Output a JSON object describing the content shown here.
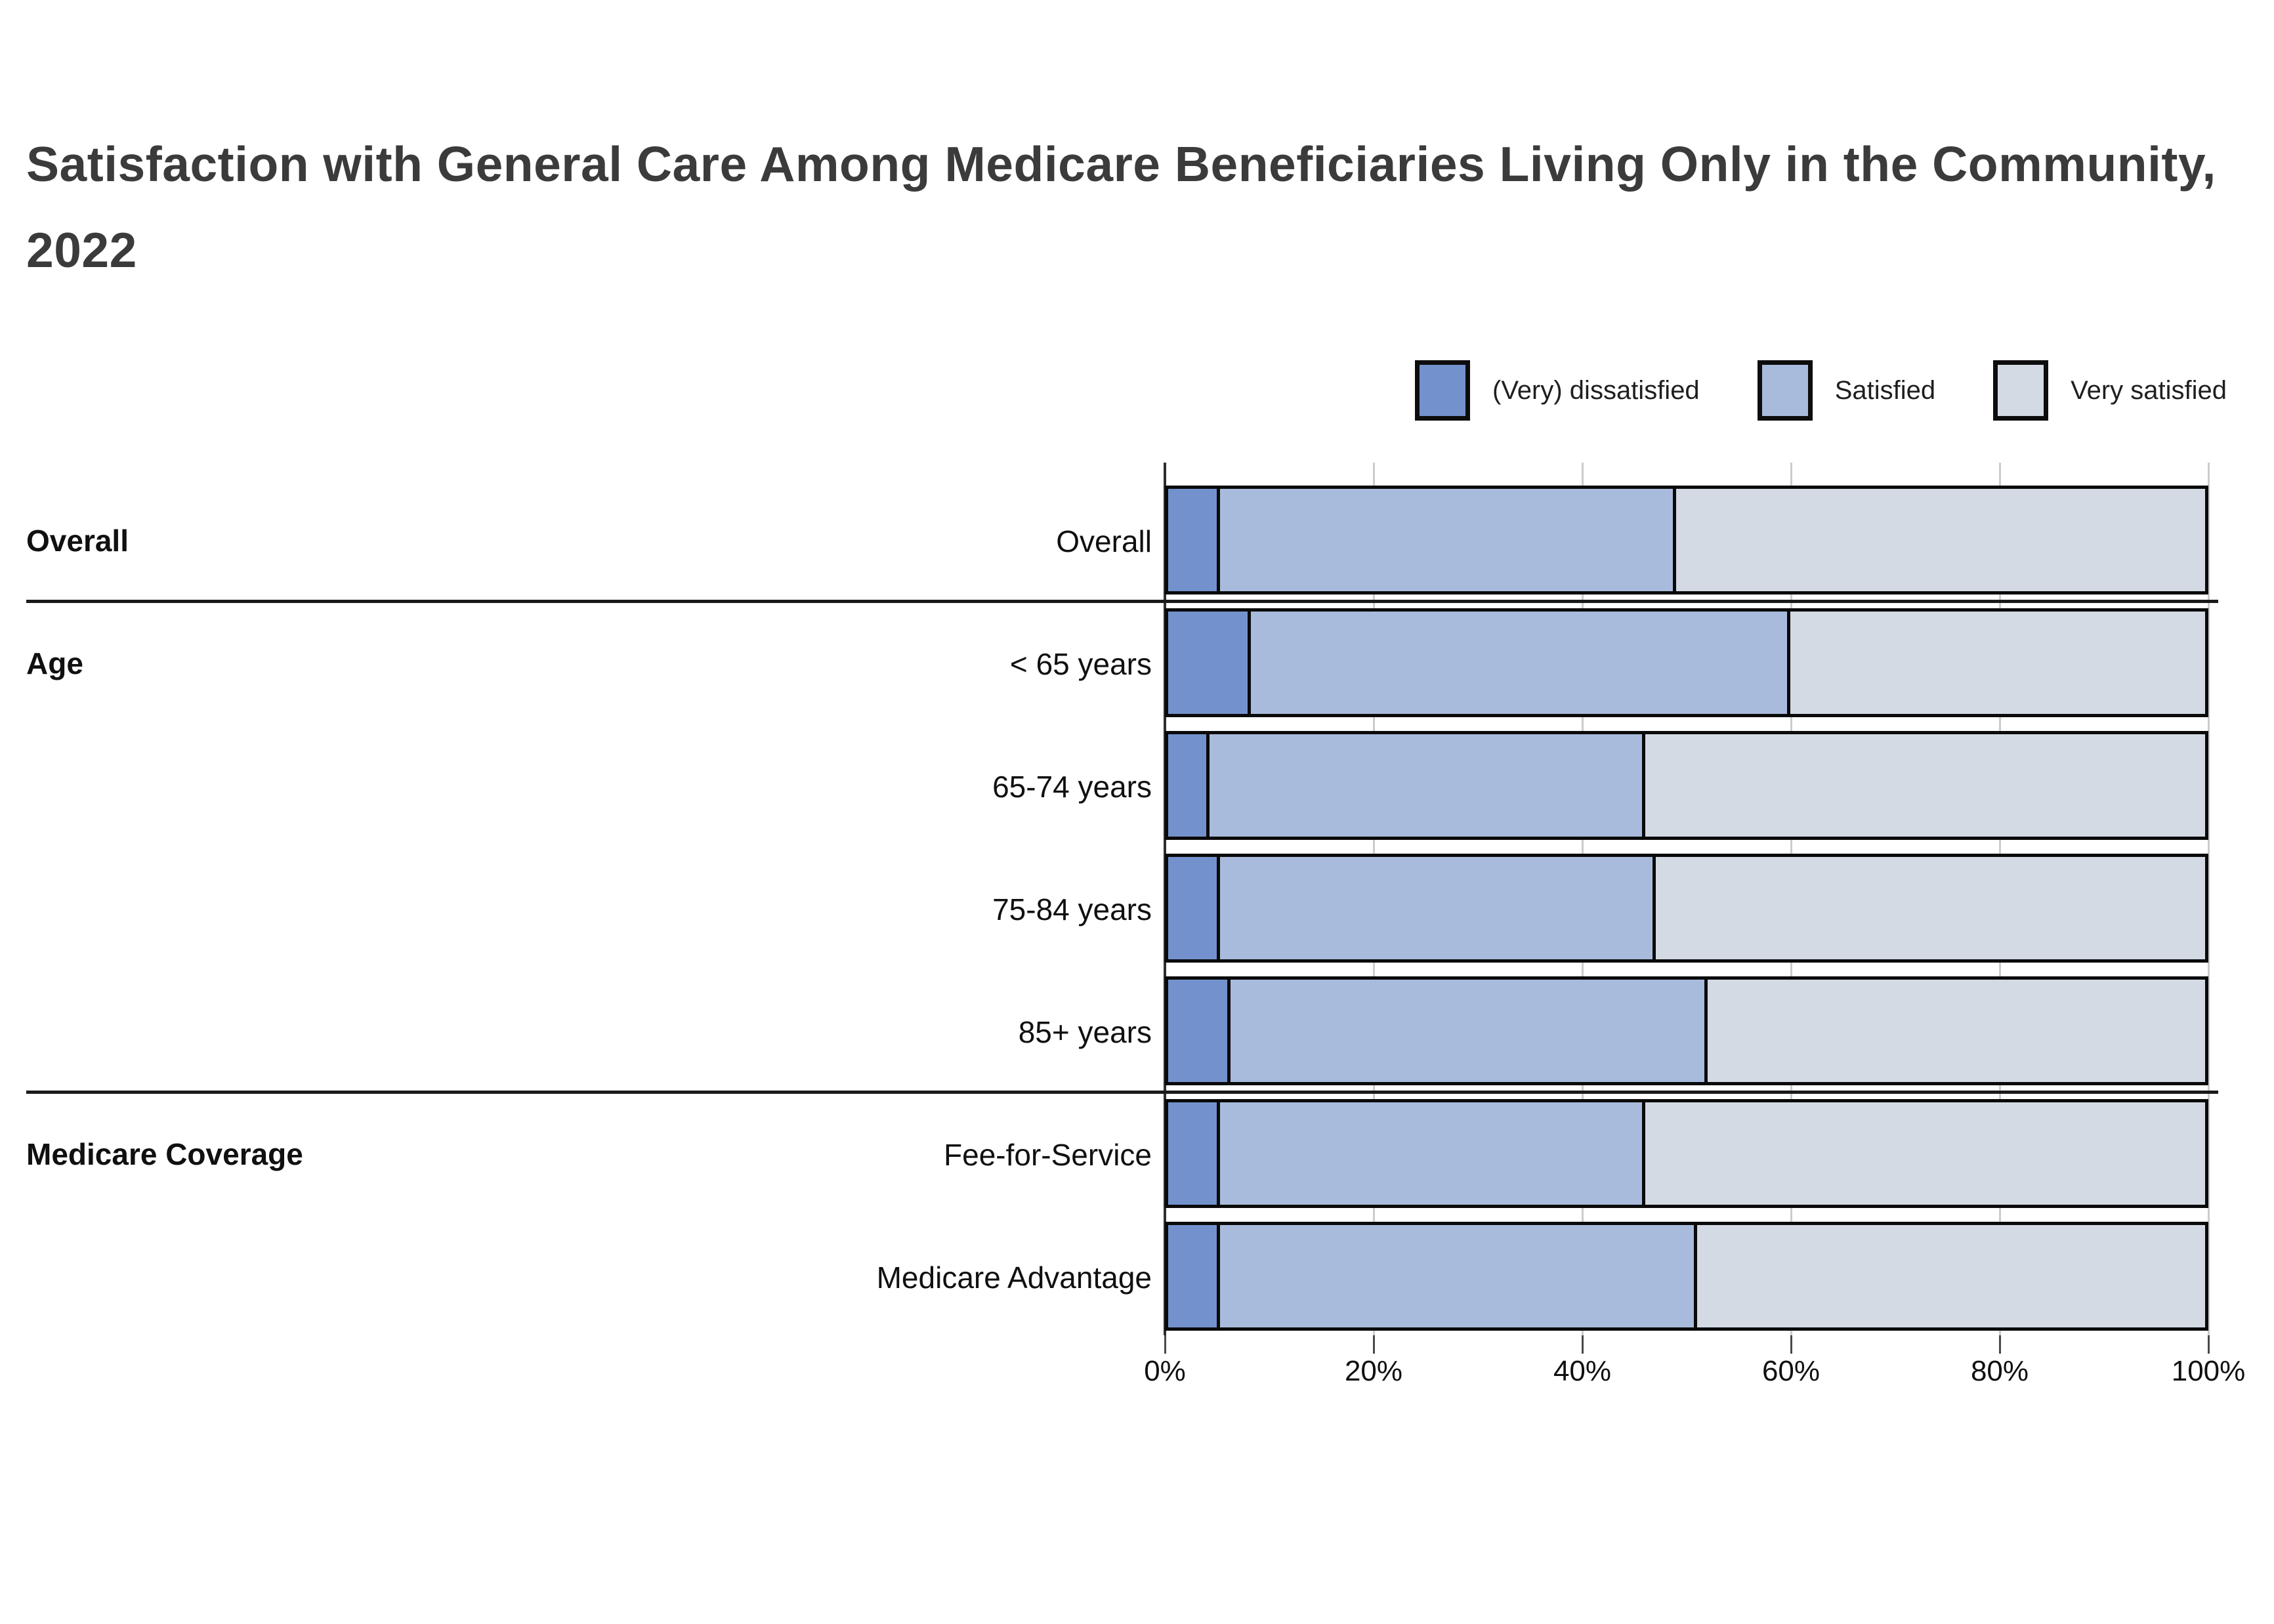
{
  "title": "Satisfaction with General Care Among Medicare Beneficiaries Living Only in the Community, 2022",
  "legend": [
    {
      "label": "(Very) dissatisfied",
      "color": "#7392CD"
    },
    {
      "label": "Satisfied",
      "color": "#A9BBDC"
    },
    {
      "label": "Very satisfied",
      "color": "#D4DAE4"
    }
  ],
  "chart_data": {
    "type": "bar",
    "orientation": "horizontal",
    "stacked": true,
    "unit": "percent",
    "xlim": [
      0,
      100
    ],
    "x_ticks": [
      "0%",
      "20%",
      "40%",
      "60%",
      "80%",
      "100%"
    ],
    "grid": "vertical",
    "legend_position": "top-right",
    "series_names": [
      "(Very) dissatisfied",
      "Satisfied",
      "Very satisfied"
    ],
    "groups": [
      {
        "label": "Overall",
        "rows": [
          {
            "label": "Overall",
            "values": [
              5,
              44,
              51
            ]
          }
        ]
      },
      {
        "label": "Age",
        "rows": [
          {
            "label": "< 65 years",
            "values": [
              8,
              52,
              40
            ]
          },
          {
            "label": "65-74 years",
            "values": [
              4,
              42,
              54
            ]
          },
          {
            "label": "75-84 years",
            "values": [
              5,
              42,
              53
            ]
          },
          {
            "label": "85+ years",
            "values": [
              6,
              46,
              48
            ]
          }
        ]
      },
      {
        "label": "Medicare Coverage",
        "rows": [
          {
            "label": "Fee-for-Service",
            "values": [
              5,
              41,
              54
            ]
          },
          {
            "label": "Medicare Advantage",
            "values": [
              5,
              46,
              49
            ]
          }
        ]
      }
    ]
  }
}
